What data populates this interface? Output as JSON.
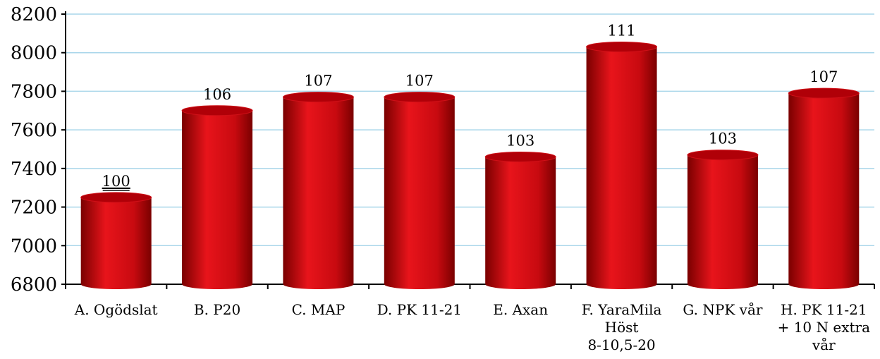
{
  "chart_data": {
    "type": "bar",
    "categories": [
      [
        "A. Ogödslat"
      ],
      [
        "B. P20"
      ],
      [
        "C. MAP"
      ],
      [
        "D. PK 11-21"
      ],
      [
        "E. Axan"
      ],
      [
        "F. YaraMila",
        "Höst",
        "8-10,5-20"
      ],
      [
        "G. NPK vår"
      ],
      [
        "H. PK 11-21",
        "+ 10 N extra",
        "vår"
      ]
    ],
    "values": [
      7250,
      7700,
      7770,
      7770,
      7460,
      8030,
      7470,
      7790
    ],
    "data_labels": [
      "100",
      "106",
      "107",
      "107",
      "103",
      "111",
      "103",
      "107"
    ],
    "underlined_label_index": 0,
    "y_ticks": [
      "6800",
      "7000",
      "7200",
      "7400",
      "7600",
      "7800",
      "8000",
      "8200"
    ],
    "ylim": [
      6800,
      8200
    ],
    "grid": true,
    "colors": {
      "bar_light": "#e8141b",
      "bar_mid": "#c80a10",
      "bar_dark": "#7a0000",
      "bar_top": "#b00008",
      "grid": "#a9d6ea"
    }
  }
}
